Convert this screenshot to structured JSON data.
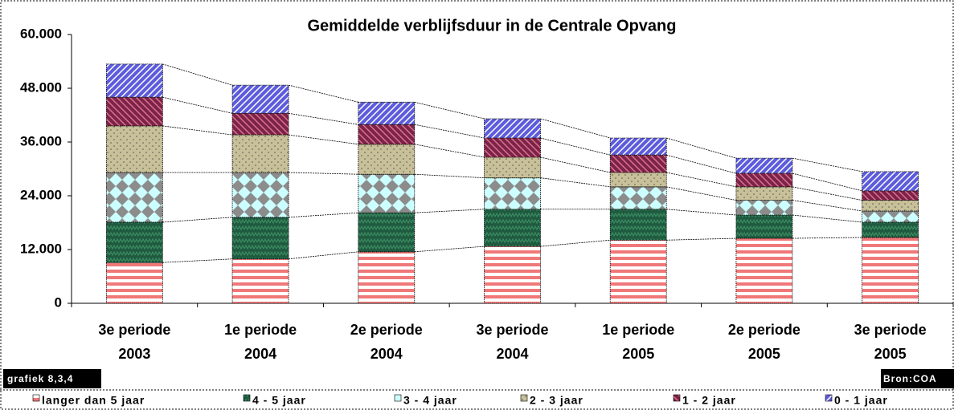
{
  "chart_data": {
    "type": "stacked-bar",
    "title": "Gemiddelde verblijfsduur in de Centrale Opvang",
    "caption": "grafiek 8,3,4",
    "source": "Bron:COA",
    "categories": [
      [
        "3e periode",
        "2003"
      ],
      [
        "1e periode",
        "2004"
      ],
      [
        "2e periode",
        "2004"
      ],
      [
        "3e periode",
        "2004"
      ],
      [
        "1e periode",
        "2005"
      ],
      [
        "2e periode",
        "2005"
      ],
      [
        "3e periode",
        "2005"
      ]
    ],
    "series": [
      {
        "name": "langer dan 5 jaar",
        "color": "#f07878",
        "values": [
          9100,
          9900,
          11500,
          12700,
          14100,
          14500,
          14700
        ]
      },
      {
        "name": "4 - 5 jaar",
        "color": "#1f5a40",
        "values": [
          9000,
          9300,
          8700,
          8300,
          6900,
          5200,
          3400
        ]
      },
      {
        "name": "3 - 4 jaar",
        "color": "#8c8c8c",
        "values": [
          11100,
          10000,
          8600,
          7000,
          5000,
          3300,
          2500
        ]
      },
      {
        "name": "2 - 3 jaar",
        "color": "#c8c098",
        "values": [
          10400,
          8400,
          6700,
          4600,
          3200,
          3000,
          2400
        ]
      },
      {
        "name": "1 - 2 jaar",
        "color": "#7a2448",
        "values": [
          6400,
          4800,
          4400,
          4300,
          3900,
          3000,
          2100
        ]
      },
      {
        "name": "0 - 1 jaar",
        "color": "#5c5cdc",
        "values": [
          7400,
          6300,
          5000,
          4300,
          3800,
          3400,
          4300
        ]
      }
    ],
    "ylim": [
      0,
      60000
    ],
    "yticks": [
      0,
      {
        "value": 12000,
        "label": "12.000"
      },
      {
        "value": 24000,
        "label": "24.000"
      },
      {
        "value": 36000,
        "label": "36.000"
      },
      {
        "value": 48000,
        "label": "48.000"
      },
      {
        "value": 60000,
        "label": "60.000"
      }
    ],
    "legend": "bottom"
  }
}
